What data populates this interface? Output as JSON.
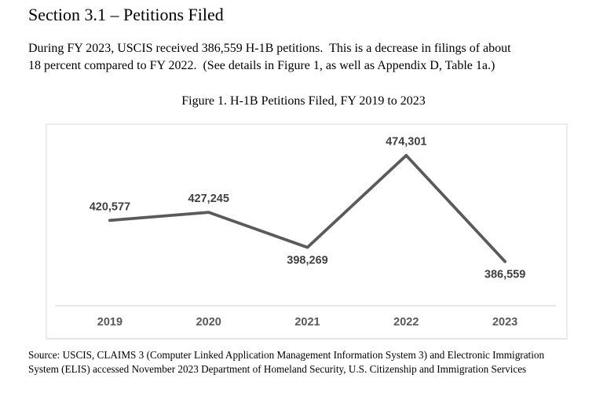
{
  "page": {
    "heading": "Section 3.1 – Petitions Filed",
    "intro_lines": [
      "During FY 2023, USCIS received 386,559 H-1B petitions.  This is a decrease in filings of about",
      "18 percent compared to FY 2022.  (See details in Figure 1, as well as Appendix D, Table 1a.)"
    ],
    "figure_title": "Figure 1. H-1B Petitions Filed, FY 2019 to 2023",
    "source_lines": [
      "Source: USCIS, CLAIMS 3 (Computer Linked Application Management Information System 3) and Electronic Immigration",
      "System (ELIS) accessed November 2023 Department of Homeland Security, U.S. Citizenship and Immigration Services"
    ]
  },
  "chart_data": {
    "type": "line",
    "title": "Figure 1. H-1B Petitions Filed, FY 2019 to 2023",
    "categories": [
      "2019",
      "2020",
      "2021",
      "2022",
      "2023"
    ],
    "values": [
      420577,
      427245,
      398269,
      474301,
      386559
    ],
    "data_labels": [
      "420,577",
      "427,245",
      "398,269",
      "474,301",
      "386,559"
    ],
    "label_positions": [
      "above",
      "above",
      "below",
      "above",
      "below"
    ],
    "xlabel": "",
    "ylabel": "",
    "ylim": [
      350000,
      500000
    ],
    "grid": false,
    "legend": "none",
    "line_color": "#5a5a5a",
    "label_color": "#404040",
    "axis_label_color": "#595959",
    "axis_line_color": "#d9d9d9"
  }
}
